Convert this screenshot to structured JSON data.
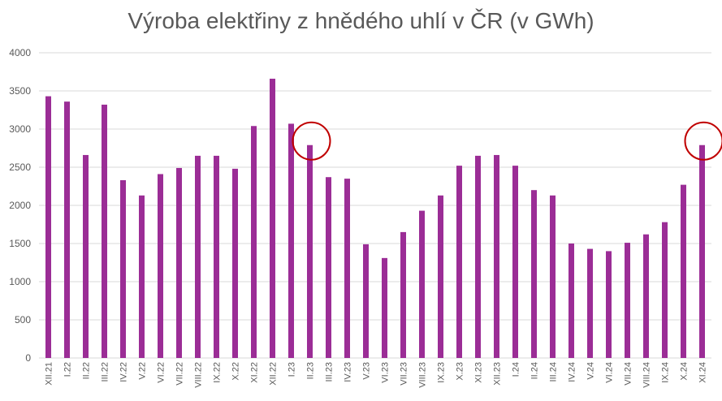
{
  "chart_data": {
    "type": "bar",
    "title": "Výroba elektřiny z hnědého uhlí v ČR (v GWh)",
    "xlabel": "",
    "ylabel": "",
    "ylim": [
      0,
      4000
    ],
    "yticks": [
      0,
      500,
      1000,
      1500,
      2000,
      2500,
      3000,
      3500,
      4000
    ],
    "grid": true,
    "legend": "none",
    "categories": [
      "XII.21",
      "I.22",
      "II.22",
      "III.22",
      "IV.22",
      "V.22",
      "VI.22",
      "VII.22",
      "VIII.22",
      "IX.22",
      "X.22",
      "XI.22",
      "XII.22",
      "I.23",
      "II.23",
      "III.23",
      "IV.23",
      "V.23",
      "VI.23",
      "VII.23",
      "VIII.23",
      "IX.23",
      "X.23",
      "XI.23",
      "XII.23",
      "I.24",
      "II.24",
      "III.24",
      "IV.24",
      "V.24",
      "VI.24",
      "VII.24",
      "VIII.24",
      "IX.24",
      "X.24",
      "XI.24"
    ],
    "values": [
      3430,
      3360,
      2660,
      3320,
      2330,
      2130,
      2410,
      2490,
      2650,
      2650,
      2480,
      3040,
      3660,
      3070,
      2790,
      2370,
      2350,
      1490,
      1310,
      1650,
      1930,
      2130,
      2520,
      2650,
      2660,
      2520,
      2200,
      2130,
      1500,
      1430,
      1400,
      1510,
      1620,
      1780,
      2270,
      2790
    ],
    "bar_color": "#9b2d96",
    "highlighted_categories": [
      "II.23",
      "XI.24"
    ],
    "highlight_color": "#c00000"
  }
}
